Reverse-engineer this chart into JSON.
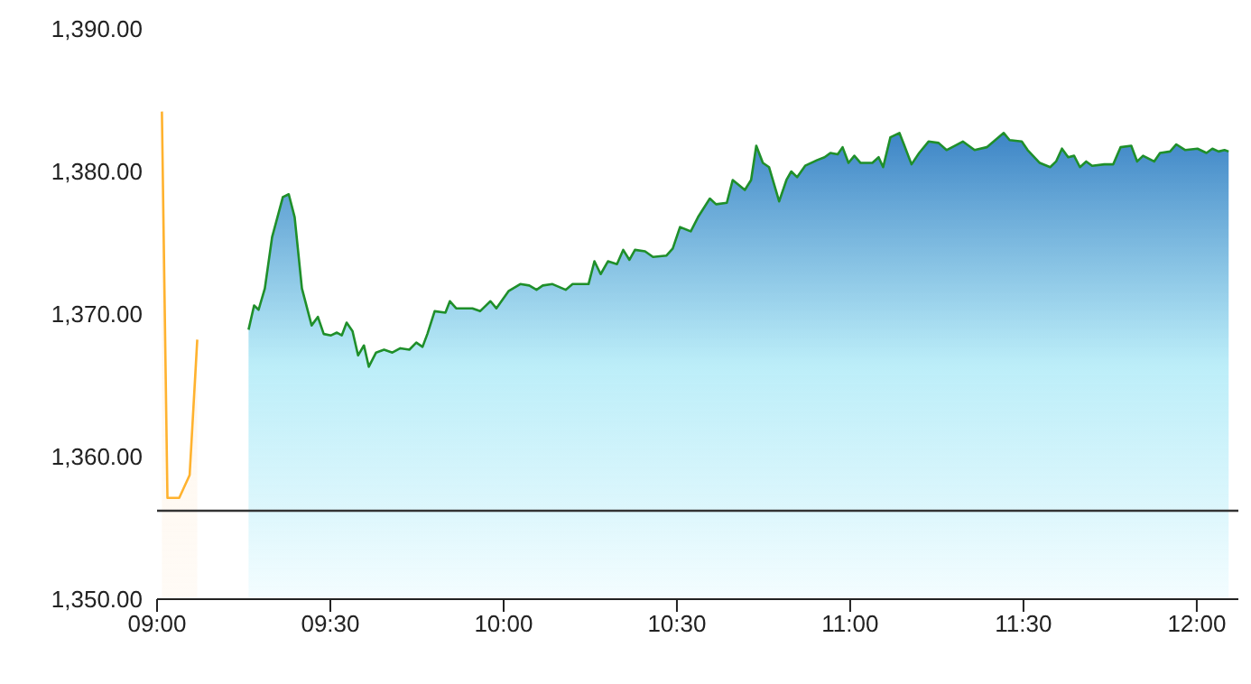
{
  "chart_data": {
    "type": "area",
    "xlim": [
      9,
      12.12
    ],
    "ylim": [
      1350,
      1390
    ],
    "xticks": [
      {
        "value": 9,
        "label": "09:00"
      },
      {
        "value": 9.5,
        "label": "09:30"
      },
      {
        "value": 10,
        "label": "10:00"
      },
      {
        "value": 10.5,
        "label": "10:30"
      },
      {
        "value": 11,
        "label": "11:00"
      },
      {
        "value": 11.5,
        "label": "11:30"
      },
      {
        "value": 12,
        "label": "12:00"
      }
    ],
    "yticks": [
      {
        "value": 1350,
        "label": "1,350.00"
      },
      {
        "value": 1360,
        "label": "1,360.00"
      },
      {
        "value": 1370,
        "label": "1,370.00"
      },
      {
        "value": 1380,
        "label": "1,380.00"
      },
      {
        "value": 1390,
        "label": "1,390.00"
      }
    ],
    "grid": false,
    "legend": false,
    "marker": "none",
    "line_style": "solid",
    "ref_lines": [
      {
        "axis": "y",
        "value": 1356.2,
        "color": "#333333"
      }
    ],
    "series": [
      {
        "color": "#ffb22e",
        "x": [
          9.014,
          9.03,
          9.064,
          9.094,
          9.116
        ],
        "values": [
          1384.2,
          1357.1,
          1357.1,
          1358.7,
          1368.2
        ]
      },
      {
        "color": "#1f8f2a",
        "x": [
          9.264,
          9.28,
          9.293,
          9.311,
          9.332,
          9.363,
          9.38,
          9.397,
          9.418,
          9.446,
          9.464,
          9.481,
          9.502,
          9.519,
          9.533,
          9.547,
          9.564,
          9.58,
          9.597,
          9.611,
          9.632,
          9.655,
          9.679,
          9.702,
          9.728,
          9.748,
          9.766,
          9.78,
          9.801,
          9.832,
          9.845,
          9.863,
          9.91,
          9.932,
          9.962,
          9.979,
          10.014,
          10.048,
          10.074,
          10.095,
          10.113,
          10.141,
          10.179,
          10.199,
          10.245,
          10.262,
          10.28,
          10.301,
          10.327,
          10.345,
          10.363,
          10.379,
          10.408,
          10.431,
          10.47,
          10.488,
          10.509,
          10.54,
          10.561,
          10.595,
          10.613,
          10.644,
          10.661,
          10.696,
          10.714,
          10.729,
          10.748,
          10.766,
          10.795,
          10.816,
          10.83,
          10.847,
          10.87,
          10.905,
          10.926,
          10.943,
          10.964,
          10.978,
          10.995,
          11.012,
          11.03,
          11.064,
          11.082,
          11.095,
          11.116,
          11.142,
          11.155,
          11.177,
          11.199,
          11.226,
          11.255,
          11.278,
          11.325,
          11.359,
          11.394,
          11.443,
          11.46,
          11.495,
          11.512,
          11.547,
          11.577,
          11.594,
          11.611,
          11.629,
          11.646,
          11.663,
          11.681,
          11.698,
          11.733,
          11.759,
          11.78,
          11.811,
          11.828,
          11.845,
          11.877,
          11.894,
          11.923,
          11.941,
          11.967,
          12.002,
          12.028,
          12.045,
          12.063,
          12.08,
          12.092
        ],
        "values": [
          1368.9,
          1370.6,
          1370.3,
          1371.8,
          1375.4,
          1378.2,
          1378.4,
          1376.8,
          1371.8,
          1369.2,
          1369.8,
          1368.6,
          1368.5,
          1368.7,
          1368.5,
          1369.4,
          1368.8,
          1367.1,
          1367.8,
          1366.3,
          1367.3,
          1367.5,
          1367.3,
          1367.6,
          1367.5,
          1368.0,
          1367.7,
          1368.6,
          1370.2,
          1370.1,
          1370.9,
          1370.4,
          1370.4,
          1370.2,
          1370.9,
          1370.4,
          1371.6,
          1372.1,
          1372.0,
          1371.7,
          1372.0,
          1372.1,
          1371.7,
          1372.1,
          1372.1,
          1373.7,
          1372.8,
          1373.7,
          1373.5,
          1374.5,
          1373.8,
          1374.5,
          1374.4,
          1374.0,
          1374.1,
          1374.6,
          1376.1,
          1375.8,
          1376.8,
          1378.1,
          1377.7,
          1377.8,
          1379.4,
          1378.7,
          1379.4,
          1381.8,
          1380.6,
          1380.3,
          1377.9,
          1379.4,
          1380.0,
          1379.6,
          1380.4,
          1380.8,
          1381.0,
          1381.3,
          1381.2,
          1381.7,
          1380.6,
          1381.1,
          1380.6,
          1380.6,
          1381.0,
          1380.3,
          1382.4,
          1382.7,
          1381.9,
          1380.5,
          1381.3,
          1382.1,
          1382.0,
          1381.5,
          1382.1,
          1381.5,
          1381.7,
          1382.7,
          1382.2,
          1382.1,
          1381.5,
          1380.6,
          1380.3,
          1380.7,
          1381.6,
          1381.0,
          1381.1,
          1380.3,
          1380.7,
          1380.4,
          1380.5,
          1380.5,
          1381.7,
          1381.8,
          1380.7,
          1381.1,
          1380.7,
          1381.3,
          1381.4,
          1381.9,
          1381.5,
          1381.6,
          1381.3,
          1381.6,
          1381.4,
          1381.5,
          1381.4
        ]
      }
    ]
  }
}
